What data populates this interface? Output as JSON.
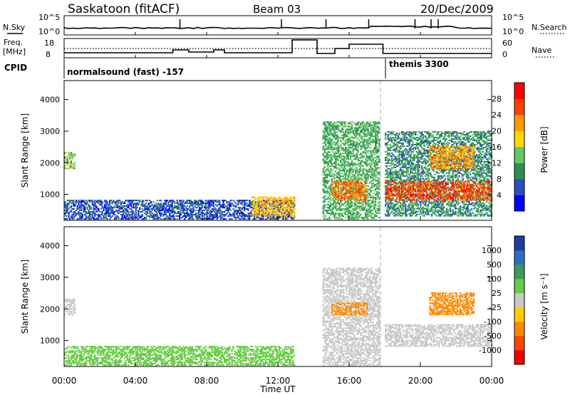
{
  "header": {
    "station": "Saskatoon (fitACF)",
    "beam": "Beam 03",
    "date": "20/Dec/2009"
  },
  "status_panels": {
    "nsky_label": "N.Sky",
    "nsky_ticks": [
      "10^5",
      "10^0"
    ],
    "nsearch_label": "N.Search",
    "nsearch_ticks": [
      "10^5",
      "10^0"
    ],
    "freq_label": "Freq.",
    "freq_unit": "[MHz]",
    "freq_ticks": [
      "18",
      "8"
    ],
    "nave_label": "Nave",
    "nave_ticks": [
      "60",
      "0"
    ],
    "cpid_label": "CPID",
    "cpid_entries": [
      {
        "name": "normalsound (fast) -157"
      },
      {
        "name": "themis 3300"
      }
    ]
  },
  "chart_data": [
    {
      "type": "heatmap",
      "title": "Power",
      "ylabel": "Slant Range [km]",
      "xlabel": "Time UT",
      "x_ticks": [
        "00:00",
        "04:00",
        "08:00",
        "12:00",
        "16:00",
        "20:00",
        "00:00"
      ],
      "y_ticks": [
        1000,
        2000,
        3000,
        4000
      ],
      "ylim": [
        180,
        4600
      ],
      "xlim_hours": [
        0,
        24
      ],
      "colorbar_label": "Power [dB]",
      "colorbar_ticks": [
        4,
        8,
        12,
        16,
        20,
        24,
        28
      ],
      "colorbar_colors": [
        "#0000ff",
        "#2a4fbf",
        "#2f8f4f",
        "#64c864",
        "#ffd700",
        "#ff9900",
        "#ff4000",
        "#ff0000"
      ],
      "regions": [
        {
          "t": [
            0.0,
            0.6
          ],
          "range": [
            1800,
            2300
          ],
          "value": 14
        },
        {
          "t": [
            0.0,
            12.9
          ],
          "range": [
            200,
            800
          ],
          "value": 6
        },
        {
          "t": [
            10.5,
            12.9
          ],
          "range": [
            300,
            900
          ],
          "value": 20
        },
        {
          "t": [
            14.5,
            17.7
          ],
          "range": [
            200,
            3300
          ],
          "value": 12
        },
        {
          "t": [
            15.0,
            17.0
          ],
          "range": [
            800,
            1400
          ],
          "value": 24
        },
        {
          "t": [
            18.0,
            24.0
          ],
          "range": [
            300,
            3000
          ],
          "value": 10
        },
        {
          "t": [
            18.0,
            24.0
          ],
          "range": [
            800,
            1400
          ],
          "value": 26
        },
        {
          "t": [
            20.5,
            23.0
          ],
          "range": [
            1800,
            2500
          ],
          "value": 22
        }
      ]
    },
    {
      "type": "heatmap",
      "title": "Velocity",
      "ylabel": "Slant Range [km]",
      "xlabel": "Time UT",
      "x_ticks": [
        "00:00",
        "04:00",
        "08:00",
        "12:00",
        "16:00",
        "20:00",
        "00:00"
      ],
      "y_ticks": [
        1000,
        2000,
        3000,
        4000
      ],
      "ylim": [
        180,
        4600
      ],
      "xlim_hours": [
        0,
        24
      ],
      "colorbar_label": "Velocity [m s⁻¹]",
      "colorbar_ticks": [
        1000,
        500,
        100,
        25,
        -25,
        -100,
        -500,
        -1000
      ],
      "colorbar_colors": [
        "#1e3ca0",
        "#2e6fc0",
        "#3a9a5a",
        "#66cc44",
        "#c8c8c8",
        "#ffcc00",
        "#ff8800",
        "#ff4400",
        "#ee0000"
      ],
      "regions": [
        {
          "t": [
            0.0,
            0.6
          ],
          "range": [
            1800,
            2300
          ],
          "value": 0
        },
        {
          "t": [
            0.0,
            12.9
          ],
          "range": [
            200,
            800
          ],
          "value": 80
        },
        {
          "t": [
            14.5,
            17.7
          ],
          "range": [
            200,
            3300
          ],
          "value": 0
        },
        {
          "t": [
            15.0,
            17.0
          ],
          "range": [
            1800,
            2200
          ],
          "value": -300
        },
        {
          "t": [
            18.0,
            24.0
          ],
          "range": [
            800,
            1500
          ],
          "value": 0
        },
        {
          "t": [
            20.5,
            23.0
          ],
          "range": [
            1800,
            2500
          ],
          "value": -300
        }
      ]
    }
  ],
  "colors": {
    "axis": "#000000",
    "background": "#ffffff",
    "gap_marker": "#c8c8c8"
  }
}
